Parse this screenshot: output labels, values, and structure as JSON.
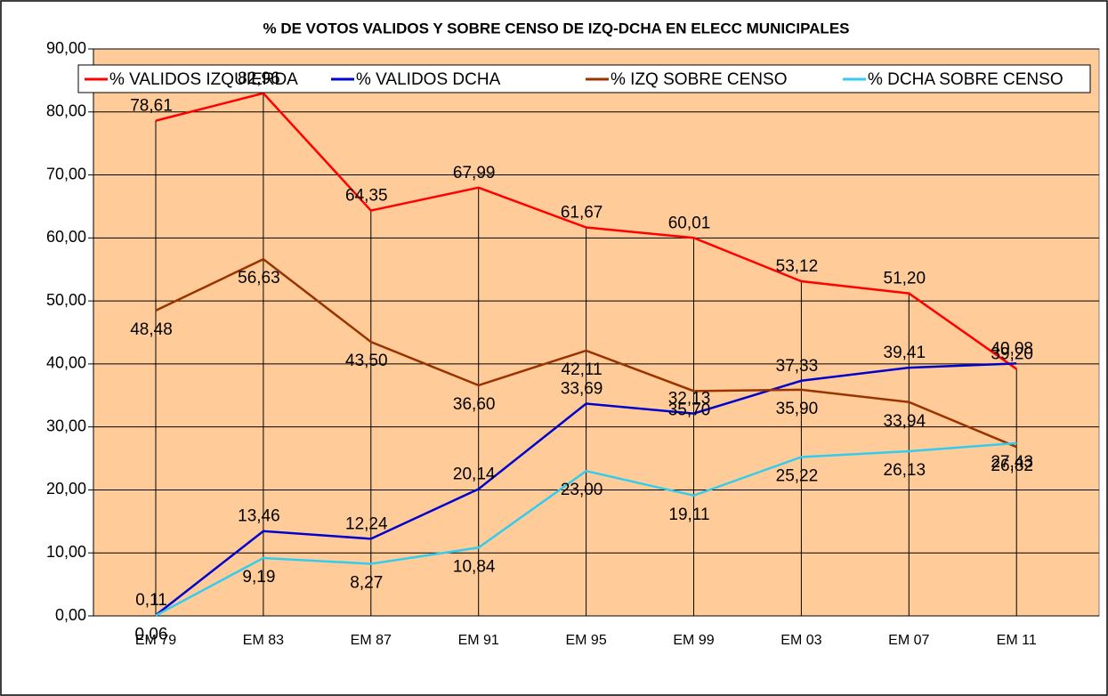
{
  "chart_data": {
    "type": "line",
    "title": "% DE VOTOS VALIDOS Y SOBRE CENSO DE IZQ-DCHA EN ELECC MUNICIPALES",
    "categories": [
      "EM 79",
      "EM 83",
      "EM 87",
      "EM 91",
      "EM 95",
      "EM 99",
      "EM 03",
      "EM 07",
      "EM 11"
    ],
    "series": [
      {
        "name": "% VALIDOS IZQUIERDA",
        "color": "#ff0000",
        "values": [
          78.61,
          82.96,
          64.35,
          67.99,
          61.67,
          60.01,
          53.12,
          51.2,
          39.2
        ],
        "value_labels": [
          "78,61",
          "82,96",
          "64,35",
          "67,99",
          "61,67",
          "60,01",
          "53,12",
          "51,20",
          "39,20"
        ]
      },
      {
        "name": "% VALIDOS DCHA",
        "color": "#0000cc",
        "values": [
          0.11,
          13.46,
          12.24,
          20.14,
          33.69,
          32.13,
          37.33,
          39.41,
          40.08
        ],
        "value_labels": [
          "0,11",
          "13,46",
          "12,24",
          "20,14",
          "33,69",
          "32,13",
          "37,33",
          "39,41",
          "40,08"
        ]
      },
      {
        "name": "% IZQ SOBRE CENSO",
        "color": "#993300",
        "values": [
          48.48,
          56.63,
          43.5,
          36.6,
          42.11,
          35.7,
          35.9,
          33.94,
          26.82
        ],
        "value_labels": [
          "48,48",
          "56,63",
          "43,50",
          "36,60",
          "42,11",
          "35,70",
          "35,90",
          "33,94",
          "26,82"
        ]
      },
      {
        "name": "% DCHA SOBRE CENSO",
        "color": "#33ccee",
        "values": [
          0.06,
          9.19,
          8.27,
          10.84,
          23.0,
          19.11,
          25.22,
          26.13,
          27.43
        ],
        "value_labels": [
          "0,06",
          "9,19",
          "8,27",
          "10,84",
          "23,00",
          "19,11",
          "25,22",
          "26,13",
          "27,43"
        ]
      }
    ],
    "ylim": [
      0,
      90
    ],
    "yticks": [
      {
        "value": 0,
        "label": "0,00"
      },
      {
        "value": 10,
        "label": "10,00"
      },
      {
        "value": 20,
        "label": "20,00"
      },
      {
        "value": 30,
        "label": "30,00"
      },
      {
        "value": 40,
        "label": "40,00"
      },
      {
        "value": 50,
        "label": "50,00"
      },
      {
        "value": 60,
        "label": "60,00"
      },
      {
        "value": 70,
        "label": "70,00"
      },
      {
        "value": 80,
        "label": "80,00"
      },
      {
        "value": 90,
        "label": "90,00"
      }
    ],
    "grid": true,
    "background": "#ffcc99"
  }
}
